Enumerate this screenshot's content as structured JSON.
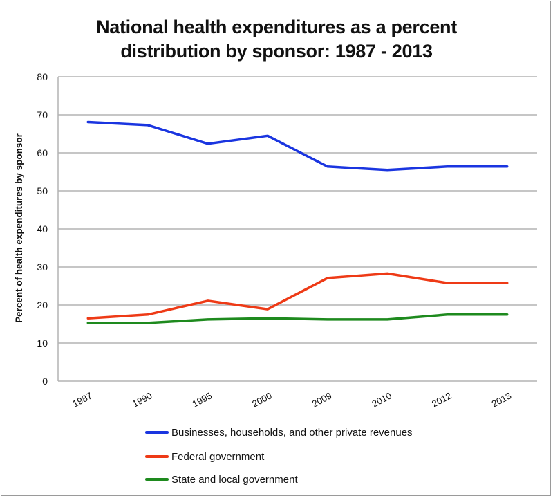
{
  "chart_data": {
    "type": "line",
    "title_lines": [
      "National health expenditures as a percent",
      "distribution by sponsor: 1987 - 2013"
    ],
    "xlabel": "",
    "ylabel": "Percent of health expenditures by sponsor",
    "categories": [
      "1987",
      "1990",
      "1995",
      "2000",
      "2009",
      "2010",
      "2012",
      "2013"
    ],
    "ylim": [
      0,
      80
    ],
    "yticks": [
      0,
      10,
      20,
      30,
      40,
      50,
      60,
      70,
      80
    ],
    "grid": true,
    "legend_position": "bottom",
    "series": [
      {
        "name": "Businesses, households, and other private revenues",
        "color": "#1a35e0",
        "values": [
          68.1,
          67.3,
          62.4,
          64.5,
          56.4,
          55.5,
          56.4,
          56.4
        ]
      },
      {
        "name": "Federal government",
        "color": "#ee3a16",
        "values": [
          16.5,
          17.5,
          21.1,
          18.9,
          27.1,
          28.3,
          25.8,
          25.8
        ]
      },
      {
        "name": "State and local government",
        "color": "#1e8a1e",
        "values": [
          15.3,
          15.3,
          16.2,
          16.5,
          16.2,
          16.2,
          17.5,
          17.5
        ]
      }
    ]
  }
}
